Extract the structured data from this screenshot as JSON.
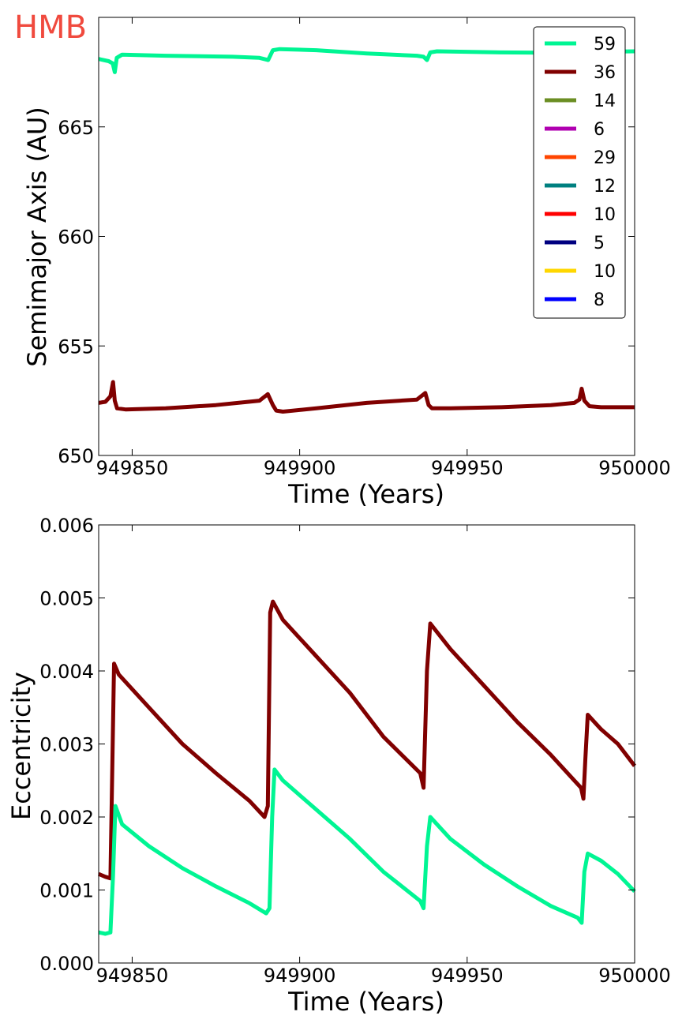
{
  "watermark": {
    "text": "HMB",
    "color": "#f04a3e"
  },
  "chart_data": [
    {
      "type": "line",
      "xlabel": "Time (Years)",
      "ylabel": "Semimajor Axis (AU)",
      "xlim": [
        949840,
        950000
      ],
      "ylim": [
        650,
        670
      ],
      "xticks": [
        949850,
        949900,
        949950,
        950000
      ],
      "xtick_labels": [
        "949850",
        "949900",
        "949950",
        "950000"
      ],
      "yticks": [
        650,
        655,
        660,
        665
      ],
      "ytick_labels": [
        "650",
        "655",
        "660",
        "665"
      ],
      "grid": false,
      "legend": {
        "placement": "top-right",
        "entries": [
          {
            "label": "59",
            "color": "#00f593"
          },
          {
            "label": "36",
            "color": "#800000"
          },
          {
            "label": "14",
            "color": "#6b8e23"
          },
          {
            "label": "6",
            "color": "#b000b0"
          },
          {
            "label": "29",
            "color": "#ff4500"
          },
          {
            "label": "12",
            "color": "#008080"
          },
          {
            "label": "10",
            "color": "#ff0000"
          },
          {
            "label": "5",
            "color": "#000080"
          },
          {
            "label": "10",
            "color": "#ffd700"
          },
          {
            "label": "8",
            "color": "#0000ff"
          }
        ]
      },
      "series": [
        {
          "color": "#00f593",
          "points": [
            [
              949840,
              668.1
            ],
            [
              949843,
              668.0
            ],
            [
              949844.2,
              667.9
            ],
            [
              949844.8,
              667.5
            ],
            [
              949845.4,
              668.15
            ],
            [
              949847,
              668.3
            ],
            [
              949860,
              668.25
            ],
            [
              949880,
              668.2
            ],
            [
              949888,
              668.15
            ],
            [
              949890.6,
              668.05
            ],
            [
              949892,
              668.5
            ],
            [
              949894,
              668.55
            ],
            [
              949905,
              668.5
            ],
            [
              949920,
              668.35
            ],
            [
              949935,
              668.25
            ],
            [
              949937,
              668.2
            ],
            [
              949938,
              668.05
            ],
            [
              949939,
              668.4
            ],
            [
              949941,
              668.45
            ],
            [
              949960,
              668.4
            ],
            [
              949980,
              668.38
            ],
            [
              949984,
              668.4
            ],
            [
              949986,
              668.42
            ],
            [
              950000,
              668.45
            ]
          ]
        },
        {
          "color": "#800000",
          "points": [
            [
              949840,
              652.4
            ],
            [
              949842,
              652.45
            ],
            [
              949843.5,
              652.7
            ],
            [
              949844.3,
              653.35
            ],
            [
              949844.8,
              652.5
            ],
            [
              949845.5,
              652.15
            ],
            [
              949848,
              652.1
            ],
            [
              949860,
              652.15
            ],
            [
              949875,
              652.3
            ],
            [
              949888,
              652.5
            ],
            [
              949890.5,
              652.8
            ],
            [
              949892,
              652.3
            ],
            [
              949893,
              652.05
            ],
            [
              949895,
              652.0
            ],
            [
              949905,
              652.15
            ],
            [
              949920,
              652.4
            ],
            [
              949935,
              652.55
            ],
            [
              949937.5,
              652.85
            ],
            [
              949938.5,
              652.3
            ],
            [
              949939.5,
              652.15
            ],
            [
              949945,
              652.15
            ],
            [
              949960,
              652.2
            ],
            [
              949975,
              652.3
            ],
            [
              949982,
              652.4
            ],
            [
              949983.5,
              652.55
            ],
            [
              949984.2,
              653.05
            ],
            [
              949985,
              652.5
            ],
            [
              949986.5,
              652.25
            ],
            [
              949990,
              652.2
            ],
            [
              950000,
              652.2
            ]
          ]
        }
      ]
    },
    {
      "type": "line",
      "xlabel": "Time (Years)",
      "ylabel": "Eccentricity",
      "xlim": [
        949840,
        950000
      ],
      "ylim": [
        0.0,
        0.006
      ],
      "xticks": [
        949850,
        949900,
        949950,
        950000
      ],
      "xtick_labels": [
        "949850",
        "949900",
        "949950",
        "950000"
      ],
      "yticks": [
        0.0,
        0.001,
        0.002,
        0.003,
        0.004,
        0.005,
        0.006
      ],
      "ytick_labels": [
        "0.000",
        "0.001",
        "0.002",
        "0.003",
        "0.004",
        "0.005",
        "0.006"
      ],
      "grid": false,
      "series": [
        {
          "color": "#800000",
          "points": [
            [
              949840,
              0.00122
            ],
            [
              949842,
              0.00118
            ],
            [
              949843.5,
              0.00116
            ],
            [
              949844.6,
              0.0041
            ],
            [
              949846,
              0.00395
            ],
            [
              949855,
              0.0035
            ],
            [
              949865,
              0.003
            ],
            [
              949875,
              0.0026
            ],
            [
              949885,
              0.00222
            ],
            [
              949889.5,
              0.002
            ],
            [
              949890.5,
              0.00215
            ],
            [
              949891.2,
              0.0048
            ],
            [
              949892,
              0.00495
            ],
            [
              949895,
              0.0047
            ],
            [
              949905,
              0.0042
            ],
            [
              949915,
              0.0037
            ],
            [
              949925,
              0.0031
            ],
            [
              949936,
              0.0026
            ],
            [
              949937,
              0.0024
            ],
            [
              949938,
              0.004
            ],
            [
              949939,
              0.00465
            ],
            [
              949945,
              0.0043
            ],
            [
              949955,
              0.0038
            ],
            [
              949965,
              0.0033
            ],
            [
              949975,
              0.00285
            ],
            [
              949982,
              0.0025
            ],
            [
              949984,
              0.0024
            ],
            [
              949984.7,
              0.00225
            ],
            [
              949985.3,
              0.0028
            ],
            [
              949986,
              0.0034
            ],
            [
              949990,
              0.0032
            ],
            [
              949995,
              0.003
            ],
            [
              950000,
              0.0027
            ]
          ]
        },
        {
          "color": "#00f593",
          "points": [
            [
              949840,
              0.00042
            ],
            [
              949842,
              0.0004
            ],
            [
              949843.5,
              0.00042
            ],
            [
              949844.3,
              0.0012
            ],
            [
              949845,
              0.00215
            ],
            [
              949847,
              0.0019
            ],
            [
              949855,
              0.0016
            ],
            [
              949865,
              0.0013
            ],
            [
              949875,
              0.00105
            ],
            [
              949885,
              0.00082
            ],
            [
              949890,
              0.00068
            ],
            [
              949891,
              0.00075
            ],
            [
              949891.8,
              0.002
            ],
            [
              949892.5,
              0.00265
            ],
            [
              949895,
              0.0025
            ],
            [
              949905,
              0.0021
            ],
            [
              949915,
              0.0017
            ],
            [
              949925,
              0.00125
            ],
            [
              949936,
              0.00085
            ],
            [
              949937,
              0.00075
            ],
            [
              949938,
              0.0016
            ],
            [
              949939,
              0.002
            ],
            [
              949945,
              0.0017
            ],
            [
              949955,
              0.00135
            ],
            [
              949965,
              0.00105
            ],
            [
              949975,
              0.00078
            ],
            [
              949983,
              0.00062
            ],
            [
              949984.2,
              0.00055
            ],
            [
              949985,
              0.00125
            ],
            [
              949986,
              0.0015
            ],
            [
              949990,
              0.0014
            ],
            [
              949995,
              0.00122
            ],
            [
              950000,
              0.00098
            ]
          ]
        }
      ]
    }
  ]
}
